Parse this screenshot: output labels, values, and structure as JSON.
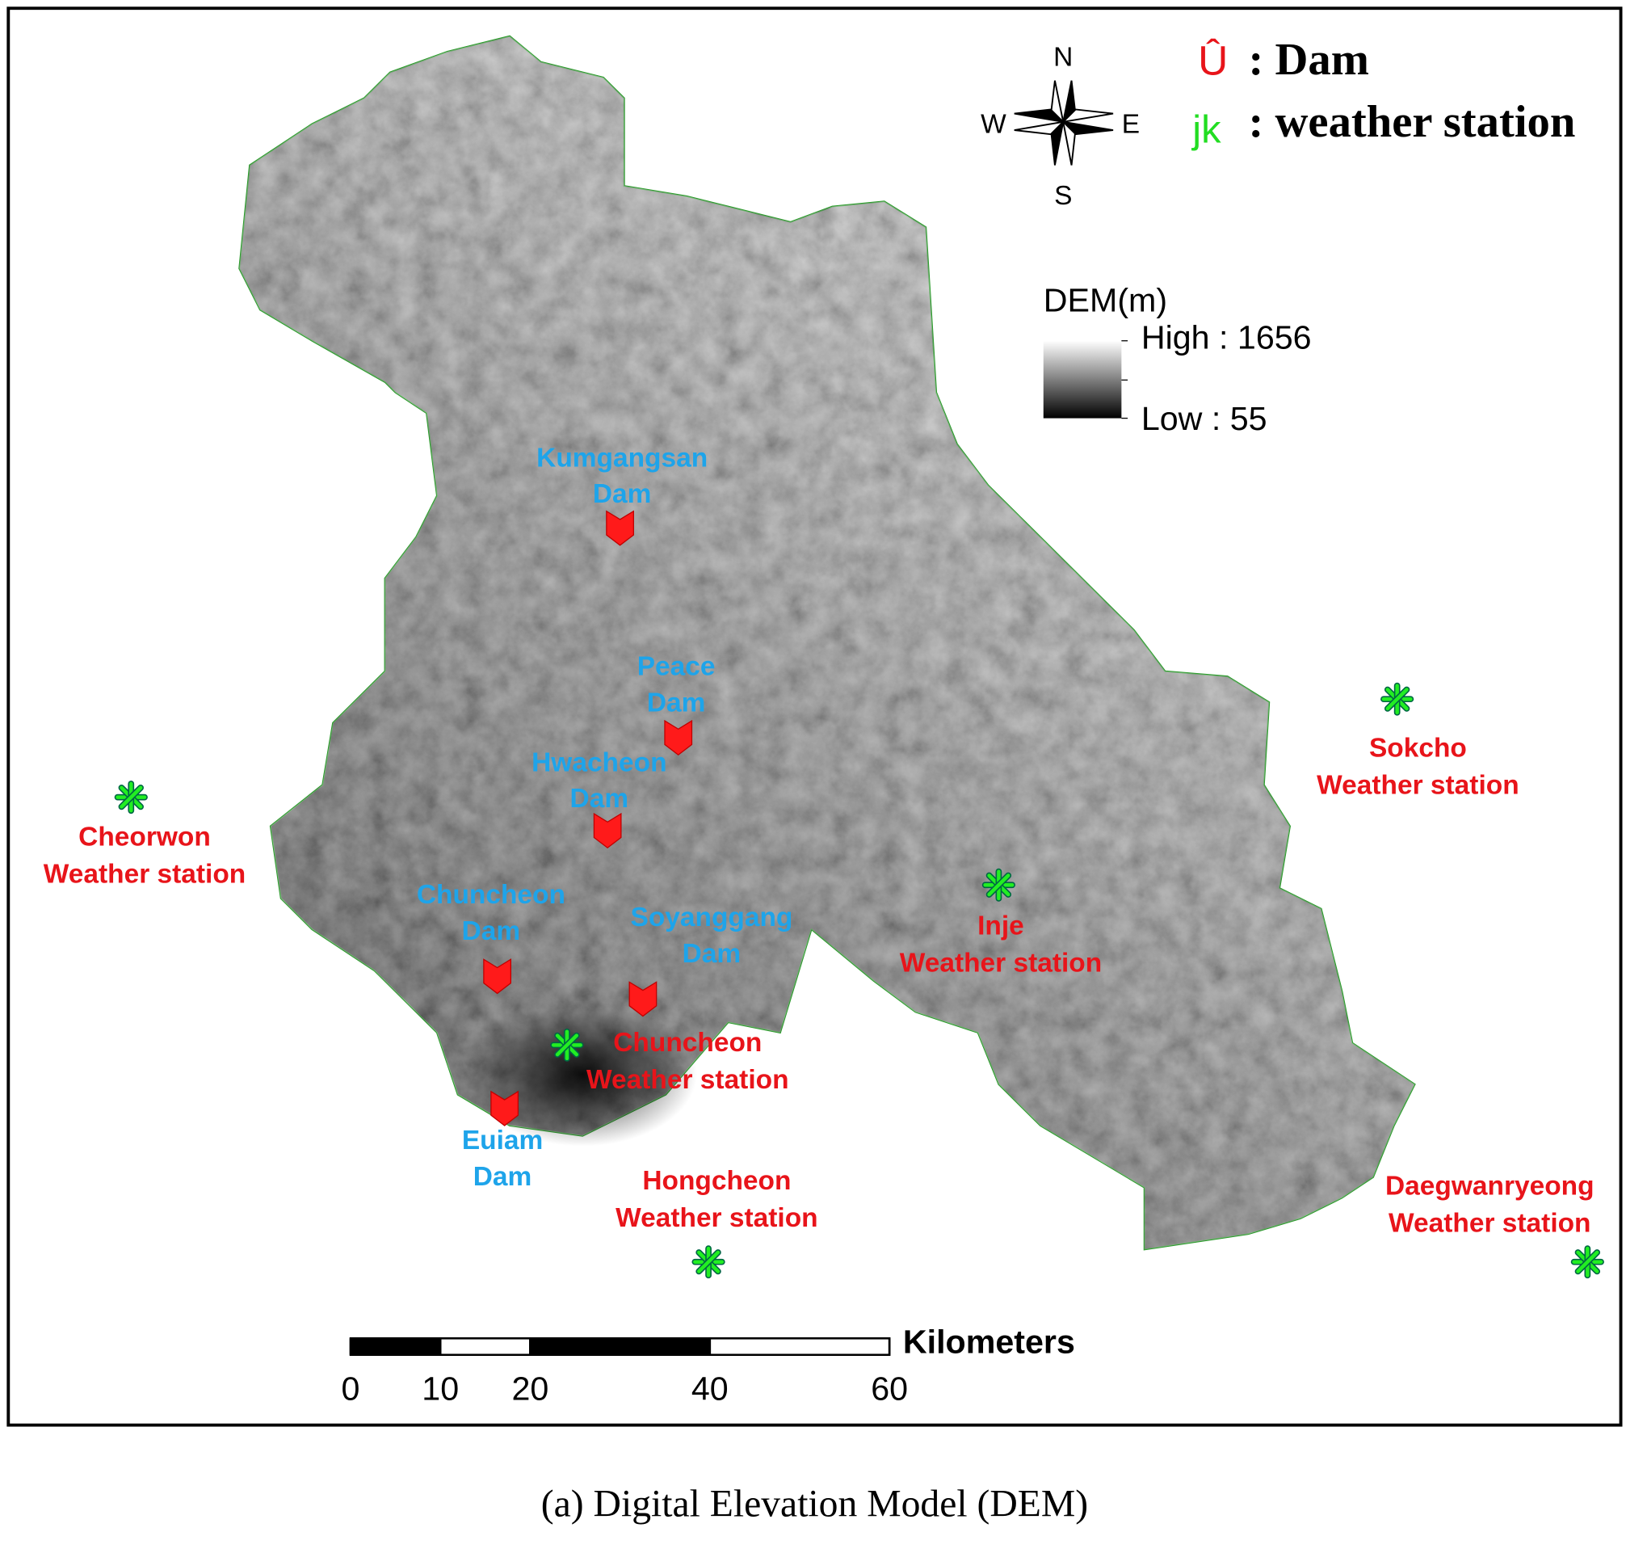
{
  "legend": {
    "items": [
      {
        "symbol": "Û",
        "label": ": Dam"
      },
      {
        "symbol": "jk",
        "label": ": weather station"
      }
    ]
  },
  "compass": {
    "north": "N",
    "south": "S",
    "west": "W",
    "east": "E"
  },
  "dem_legend": {
    "title": "DEM(m)",
    "high": "High : 1656",
    "low": "Low : 55"
  },
  "dams": [
    {
      "lines": [
        "Kumgangsan",
        "Dam"
      ]
    },
    {
      "lines": [
        "Peace",
        "Dam"
      ]
    },
    {
      "lines": [
        "Hwacheon",
        "Dam"
      ]
    },
    {
      "lines": [
        "Chuncheon",
        "Dam"
      ]
    },
    {
      "lines": [
        "Soyanggang",
        "Dam"
      ]
    },
    {
      "lines": [
        "Euiam",
        "Dam"
      ]
    }
  ],
  "weather_stations": [
    {
      "lines": [
        "Cheorwon",
        "Weather station"
      ]
    },
    {
      "lines": [
        "Sokcho",
        "Weather station"
      ]
    },
    {
      "lines": [
        "Inje",
        "Weather station"
      ]
    },
    {
      "lines": [
        "Chuncheon",
        "Weather station"
      ]
    },
    {
      "lines": [
        "Hongcheon",
        "Weather station"
      ]
    },
    {
      "lines": [
        "Daegwanryeong",
        "Weather station"
      ]
    }
  ],
  "scale_bar": {
    "unit": "Kilometers",
    "ticks": [
      0,
      10,
      20,
      40,
      60
    ]
  },
  "caption": "(a) Digital Elevation Model (DEM)"
}
